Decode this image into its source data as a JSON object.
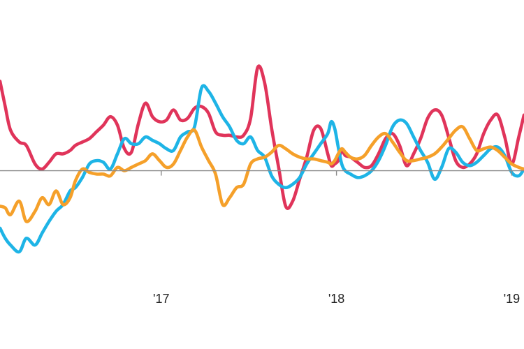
{
  "chart_data": {
    "type": "line",
    "title": "",
    "xlabel": "",
    "ylabel": "",
    "x_tick_labels": [
      {
        "label": "'17",
        "x": 2017.0
      },
      {
        "label": "'18",
        "x": 2018.0
      },
      {
        "label": "'19",
        "x": 2019.0
      }
    ],
    "xlim": [
      2016.08,
      2019.07
    ],
    "ylim": [
      -0.51,
      0.61
    ],
    "zero_line": true,
    "grid": false,
    "legend": "none",
    "series": [
      {
        "color": "#e0345a",
        "x": [
          2016.08,
          2016.11,
          2016.14,
          2016.19,
          2016.23,
          2016.28,
          2016.32,
          2016.36,
          2016.4,
          2016.44,
          2016.48,
          2016.51,
          2016.55,
          2016.59,
          2016.63,
          2016.67,
          2016.71,
          2016.75,
          2016.79,
          2016.83,
          2016.87,
          2016.91,
          2016.95,
          2016.99,
          2017.03,
          2017.07,
          2017.11,
          2017.15,
          2017.19,
          2017.23,
          2017.27,
          2017.31,
          2017.35,
          2017.39,
          2017.43,
          2017.47,
          2017.51,
          2017.55,
          2017.59,
          2017.63,
          2017.67,
          2017.71,
          2017.75,
          2017.79,
          2017.83,
          2017.87,
          2017.91,
          2017.95,
          2017.97,
          2017.99,
          2018.01,
          2018.03,
          2018.05,
          2018.08,
          2018.12,
          2018.16,
          2018.2,
          2018.24,
          2018.28,
          2018.32,
          2018.36,
          2018.4,
          2018.44,
          2018.48,
          2018.52,
          2018.56,
          2018.6,
          2018.64,
          2018.68,
          2018.72,
          2018.76,
          2018.8,
          2018.84,
          2018.88,
          2018.92,
          2018.96,
          2019.0,
          2019.04,
          2019.07
        ],
        "y": [
          0.53,
          0.38,
          0.24,
          0.17,
          0.15,
          0.04,
          0.01,
          0.05,
          0.1,
          0.1,
          0.12,
          0.15,
          0.17,
          0.19,
          0.23,
          0.27,
          0.32,
          0.27,
          0.13,
          0.11,
          0.28,
          0.4,
          0.32,
          0.29,
          0.3,
          0.36,
          0.3,
          0.31,
          0.37,
          0.38,
          0.34,
          0.23,
          0.21,
          0.21,
          0.2,
          0.21,
          0.31,
          0.61,
          0.52,
          0.25,
          0.02,
          -0.21,
          -0.18,
          -0.05,
          0.08,
          0.24,
          0.25,
          0.1,
          0.03,
          0.04,
          0.06,
          0.12,
          0.09,
          0.08,
          0.05,
          0.02,
          0.03,
          0.1,
          0.19,
          0.22,
          0.15,
          0.03,
          0.1,
          0.19,
          0.31,
          0.36,
          0.33,
          0.2,
          0.06,
          0.02,
          0.04,
          0.1,
          0.22,
          0.3,
          0.33,
          0.2,
          0.04,
          0.2,
          0.33
        ]
      },
      {
        "color": "#1eb4e6",
        "x": [
          2016.08,
          2016.11,
          2016.14,
          2016.19,
          2016.23,
          2016.28,
          2016.32,
          2016.36,
          2016.4,
          2016.44,
          2016.48,
          2016.51,
          2016.55,
          2016.59,
          2016.63,
          2016.67,
          2016.71,
          2016.75,
          2016.79,
          2016.83,
          2016.87,
          2016.91,
          2016.95,
          2016.99,
          2017.03,
          2017.07,
          2017.11,
          2017.15,
          2017.19,
          2017.23,
          2017.27,
          2017.31,
          2017.35,
          2017.39,
          2017.43,
          2017.47,
          2017.51,
          2017.55,
          2017.59,
          2017.63,
          2017.67,
          2017.71,
          2017.75,
          2017.79,
          2017.83,
          2017.87,
          2017.91,
          2017.95,
          2017.97,
          2017.99,
          2018.01,
          2018.03,
          2018.05,
          2018.08,
          2018.12,
          2018.16,
          2018.2,
          2018.24,
          2018.28,
          2018.32,
          2018.36,
          2018.4,
          2018.44,
          2018.48,
          2018.52,
          2018.56,
          2018.6,
          2018.64,
          2018.68,
          2018.72,
          2018.76,
          2018.8,
          2018.84,
          2018.88,
          2018.92,
          2018.96,
          2019.0,
          2019.04,
          2019.07
        ],
        "y": [
          -0.34,
          -0.4,
          -0.44,
          -0.48,
          -0.4,
          -0.44,
          -0.37,
          -0.3,
          -0.24,
          -0.2,
          -0.12,
          -0.1,
          -0.04,
          0.04,
          0.06,
          0.05,
          0.01,
          0.1,
          0.19,
          0.16,
          0.16,
          0.2,
          0.18,
          0.16,
          0.13,
          0.12,
          0.2,
          0.23,
          0.26,
          0.49,
          0.47,
          0.4,
          0.32,
          0.26,
          0.18,
          0.16,
          0.2,
          0.12,
          0.08,
          -0.03,
          -0.08,
          -0.1,
          -0.08,
          -0.04,
          0.04,
          0.1,
          0.16,
          0.22,
          0.29,
          0.25,
          0.14,
          0.04,
          0.0,
          -0.02,
          -0.04,
          -0.03,
          0.0,
          0.06,
          0.15,
          0.26,
          0.3,
          0.28,
          0.2,
          0.12,
          0.05,
          -0.05,
          0.02,
          0.13,
          0.11,
          0.05,
          0.03,
          0.05,
          0.09,
          0.13,
          0.14,
          0.09,
          -0.01,
          -0.03,
          0.01
        ]
      },
      {
        "color": "#f5a02a",
        "x": [
          2016.08,
          2016.11,
          2016.14,
          2016.19,
          2016.23,
          2016.28,
          2016.32,
          2016.36,
          2016.4,
          2016.44,
          2016.48,
          2016.51,
          2016.55,
          2016.59,
          2016.63,
          2016.67,
          2016.71,
          2016.75,
          2016.79,
          2016.83,
          2016.87,
          2016.91,
          2016.95,
          2016.99,
          2017.03,
          2017.07,
          2017.11,
          2017.15,
          2017.19,
          2017.23,
          2017.27,
          2017.31,
          2017.35,
          2017.39,
          2017.43,
          2017.47,
          2017.51,
          2017.55,
          2017.59,
          2017.63,
          2017.67,
          2017.71,
          2017.75,
          2017.79,
          2017.83,
          2017.87,
          2017.91,
          2017.95,
          2017.97,
          2017.99,
          2018.01,
          2018.03,
          2018.05,
          2018.08,
          2018.12,
          2018.16,
          2018.2,
          2018.24,
          2018.28,
          2018.32,
          2018.36,
          2018.4,
          2018.44,
          2018.48,
          2018.52,
          2018.56,
          2018.6,
          2018.64,
          2018.68,
          2018.72,
          2018.76,
          2018.8,
          2018.84,
          2018.88,
          2018.92,
          2018.96,
          2019.0,
          2019.04,
          2019.07
        ],
        "y": [
          -0.21,
          -0.22,
          -0.26,
          -0.18,
          -0.3,
          -0.24,
          -0.16,
          -0.2,
          -0.12,
          -0.2,
          -0.16,
          -0.06,
          0.01,
          -0.01,
          -0.02,
          -0.02,
          -0.03,
          0.02,
          0.0,
          0.02,
          0.04,
          0.06,
          0.1,
          0.06,
          0.02,
          0.04,
          0.12,
          0.2,
          0.24,
          0.14,
          0.06,
          -0.02,
          -0.2,
          -0.16,
          -0.1,
          -0.08,
          0.04,
          0.07,
          0.08,
          0.11,
          0.15,
          0.13,
          0.1,
          0.08,
          0.07,
          0.07,
          0.06,
          0.05,
          0.04,
          0.06,
          0.1,
          0.13,
          0.11,
          0.08,
          0.07,
          0.09,
          0.15,
          0.2,
          0.22,
          0.17,
          0.11,
          0.06,
          0.06,
          0.07,
          0.08,
          0.1,
          0.14,
          0.19,
          0.24,
          0.26,
          0.19,
          0.12,
          0.13,
          0.14,
          0.12,
          0.08,
          0.04,
          0.02,
          0.01
        ]
      }
    ]
  }
}
